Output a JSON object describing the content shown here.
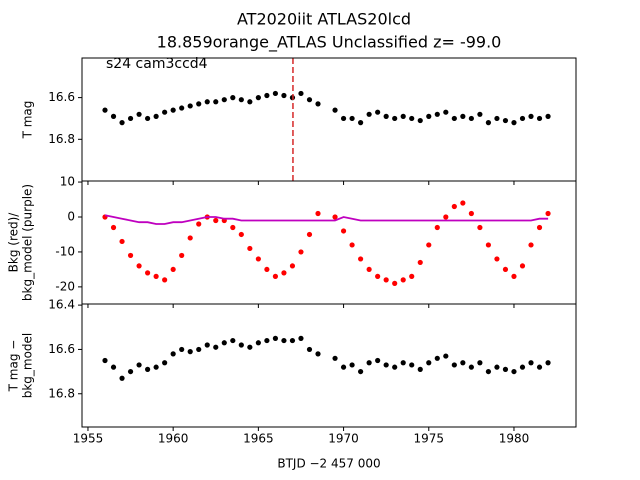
{
  "chart_data": [
    {
      "type": "scatter",
      "title": [
        "AT2020iit  ATLAS20lcd",
        "18.859orange_ATLAS Unclassified z= -99.0"
      ],
      "annotation": "s24 cam3ccd4",
      "ylabel": [
        "T mag"
      ],
      "xlim": [
        1954.65,
        1983.64
      ],
      "xticks": [
        1955,
        1960,
        1965,
        1970,
        1975,
        1980
      ],
      "ylim": [
        17.0,
        16.41
      ],
      "yticks": [
        16.6,
        16.8
      ],
      "vline": {
        "x": 1967.03,
        "color": "#d62728"
      },
      "x": [
        1956,
        1956.5,
        1957,
        1957.5,
        1958,
        1958.5,
        1959,
        1959.5,
        1960,
        1960.5,
        1961,
        1961.5,
        1962,
        1962.5,
        1963,
        1963.5,
        1964,
        1964.5,
        1965,
        1965.5,
        1966,
        1966.5,
        1967,
        1967.5,
        1968,
        1968.5,
        1969.5,
        1970,
        1970.5,
        1971,
        1971.5,
        1972,
        1972.5,
        1973,
        1973.5,
        1974,
        1974.5,
        1975,
        1975.5,
        1976,
        1976.5,
        1977,
        1977.5,
        1978,
        1978.5,
        1979,
        1979.5,
        1980,
        1980.5,
        1981,
        1981.5,
        1982
      ],
      "series": [
        {
          "color": "#000000",
          "marker": "point",
          "values": [
            16.66,
            16.69,
            16.72,
            16.7,
            16.68,
            16.7,
            16.69,
            16.67,
            16.66,
            16.65,
            16.64,
            16.63,
            16.62,
            16.62,
            16.61,
            16.6,
            16.61,
            16.62,
            16.6,
            16.59,
            16.58,
            16.59,
            16.6,
            16.58,
            16.61,
            16.63,
            16.66,
            16.7,
            16.7,
            16.72,
            16.68,
            16.67,
            16.69,
            16.7,
            16.69,
            16.7,
            16.71,
            16.69,
            16.68,
            16.67,
            16.7,
            16.69,
            16.7,
            16.68,
            16.72,
            16.7,
            16.71,
            16.72,
            16.7,
            16.69,
            16.7,
            16.69
          ]
        }
      ]
    },
    {
      "type": "scatter",
      "ylabel": [
        "Bkg (red)/",
        "bkg_model (purple)"
      ],
      "xlim": [
        1954.65,
        1983.64
      ],
      "xticks": [
        1955,
        1960,
        1965,
        1970,
        1975,
        1980
      ],
      "ylim": [
        -24.9,
        10.3
      ],
      "yticks": [
        -20,
        -10,
        0,
        10
      ],
      "x": [
        1956,
        1956.5,
        1957,
        1957.5,
        1958,
        1958.5,
        1959,
        1959.5,
        1960,
        1960.5,
        1961,
        1961.5,
        1962,
        1962.5,
        1963,
        1963.5,
        1964,
        1964.5,
        1965,
        1965.5,
        1966,
        1966.5,
        1967,
        1967.5,
        1968,
        1968.5,
        1969.5,
        1970,
        1970.5,
        1971,
        1971.5,
        1972,
        1972.5,
        1973,
        1973.5,
        1974,
        1974.5,
        1975,
        1975.5,
        1976,
        1976.5,
        1977,
        1977.5,
        1978,
        1978.5,
        1979,
        1979.5,
        1980,
        1980.5,
        1981,
        1981.5,
        1982
      ],
      "series": [
        {
          "color": "#ff0000",
          "marker": "point",
          "values": [
            0,
            -3,
            -7,
            -11,
            -14,
            -16,
            -17,
            -18,
            -15,
            -11,
            -6,
            -2,
            0,
            -1,
            -1,
            -3,
            -5,
            -9,
            -12,
            -15,
            -17,
            -16,
            -14,
            -10,
            -5,
            1,
            0,
            -4,
            -8,
            -12,
            -15,
            -17,
            -18,
            -19,
            -18,
            -17,
            -13,
            -8,
            -3,
            0,
            3,
            4,
            1,
            -3,
            -8,
            -12,
            -15,
            -17,
            -14,
            -8,
            -3,
            1
          ]
        },
        {
          "color": "#bf00bf",
          "marker": "line",
          "values": [
            0.5,
            0,
            -0.5,
            -1,
            -1.5,
            -1.5,
            -2,
            -2,
            -1.5,
            -1.5,
            -1,
            -0.5,
            0,
            0,
            -0.5,
            -0.5,
            -1,
            -1,
            -1,
            -1,
            -1,
            -1,
            -1,
            -1,
            -1,
            -1,
            -1,
            0,
            -0.5,
            -1,
            -1,
            -1,
            -1,
            -1,
            -1,
            -1,
            -1,
            -1,
            -1,
            -1,
            -1,
            -1,
            -1,
            -1,
            -1,
            -1,
            -1,
            -1,
            -1,
            -1,
            -0.5,
            -0.5
          ]
        }
      ]
    },
    {
      "type": "scatter",
      "ylabel": [
        "T mag −",
        "bkg_model"
      ],
      "xlabel": "BTJD −2 457 000",
      "xlim": [
        1954.65,
        1983.64
      ],
      "xticks": [
        1955,
        1960,
        1965,
        1970,
        1975,
        1980
      ],
      "ylim": [
        16.95,
        16.395
      ],
      "yticks": [
        16.4,
        16.6,
        16.8
      ],
      "x": [
        1956,
        1956.5,
        1957,
        1957.5,
        1958,
        1958.5,
        1959,
        1959.5,
        1960,
        1960.5,
        1961,
        1961.5,
        1962,
        1962.5,
        1963,
        1963.5,
        1964,
        1964.5,
        1965,
        1965.5,
        1966,
        1966.5,
        1967,
        1967.5,
        1968,
        1968.5,
        1969.5,
        1970,
        1970.5,
        1971,
        1971.5,
        1972,
        1972.5,
        1973,
        1973.5,
        1974,
        1974.5,
        1975,
        1975.5,
        1976,
        1976.5,
        1977,
        1977.5,
        1978,
        1978.5,
        1979,
        1979.5,
        1980,
        1980.5,
        1981,
        1981.5,
        1982
      ],
      "series": [
        {
          "color": "#000000",
          "marker": "point",
          "values": [
            16.65,
            16.68,
            16.73,
            16.7,
            16.67,
            16.69,
            16.68,
            16.66,
            16.62,
            16.6,
            16.61,
            16.6,
            16.58,
            16.59,
            16.57,
            16.56,
            16.58,
            16.59,
            16.57,
            16.56,
            16.55,
            16.56,
            16.56,
            16.55,
            16.6,
            16.62,
            16.64,
            16.68,
            16.67,
            16.7,
            16.66,
            16.65,
            16.67,
            16.68,
            16.66,
            16.67,
            16.69,
            16.66,
            16.64,
            16.63,
            16.67,
            16.66,
            16.68,
            16.66,
            16.7,
            16.68,
            16.69,
            16.7,
            16.68,
            16.66,
            16.68,
            16.66
          ]
        }
      ]
    }
  ]
}
